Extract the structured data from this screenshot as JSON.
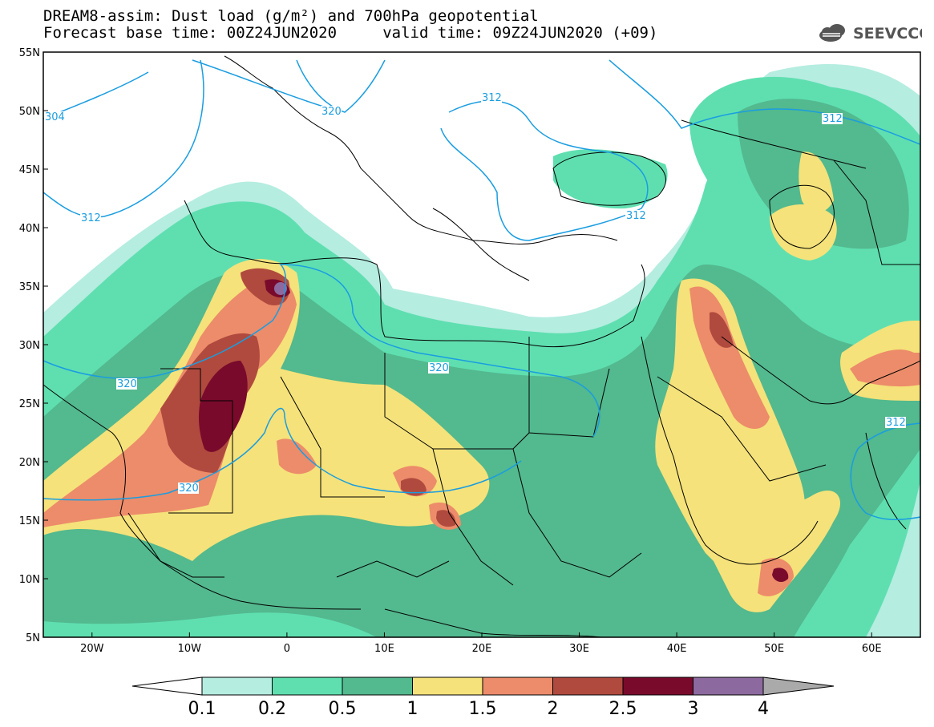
{
  "header": {
    "title_line_1": "DREAM8-assim: Dust load (g/m²) and 700hPa geopotential",
    "title_line_2": "Forecast base time: 00Z24JUN2020     valid time: 09Z24JUN2020 (+09)"
  },
  "logo": {
    "text": "SEEVCCC",
    "icon": "cloud-icon"
  },
  "map": {
    "extent": {
      "lon": [
        -25,
        65
      ],
      "lat": [
        5,
        55
      ]
    },
    "lat_labels": [
      "55N",
      "50N",
      "45N",
      "40N",
      "35N",
      "30N",
      "25N",
      "20N",
      "15N",
      "10N",
      "5N"
    ],
    "lon_labels": [
      "20W",
      "10W",
      "0",
      "10E",
      "20E",
      "30E",
      "40E",
      "50E",
      "60E"
    ],
    "contour_color": "#1a9de0",
    "contour_labels": [
      "304",
      "320",
      "312",
      "312",
      "312",
      "320",
      "312",
      "320",
      "320",
      "312"
    ]
  },
  "legend": {
    "labels": [
      "0.1",
      "0.2",
      "0.5",
      "1",
      "1.5",
      "2",
      "2.5",
      "3",
      "4"
    ],
    "colors": [
      "#ffffff",
      "#b5ede0",
      "#5fdfb0",
      "#53b98e",
      "#f5e27a",
      "#ec8c6a",
      "#b04a3e",
      "#7a0a2c",
      "#8c6aa0",
      "#aaaaaa"
    ]
  }
}
